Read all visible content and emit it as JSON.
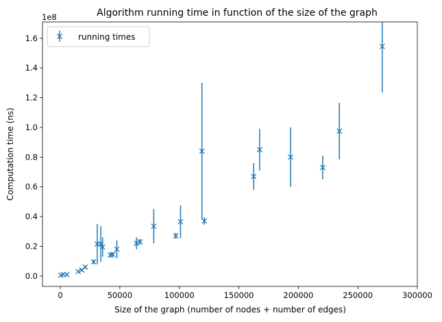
{
  "chart_data": {
    "type": "scatter",
    "title": "Algorithm running time in function of the size of the graph",
    "xlabel": "Size of the graph (number of nodes + number of edges)",
    "ylabel": "Computation time (ns)",
    "y_multiplier_label": "1e8",
    "xlim": [
      -15000,
      300000
    ],
    "ylim": [
      -0.07,
      1.71
    ],
    "x_ticks": [
      0,
      50000,
      100000,
      150000,
      200000,
      250000,
      300000
    ],
    "x_tick_labels": [
      "0",
      "50000",
      "100000",
      "150000",
      "200000",
      "250000",
      "300000"
    ],
    "y_ticks": [
      0.0,
      0.2,
      0.4,
      0.6,
      0.8,
      1.0,
      1.2,
      1.4,
      1.6
    ],
    "y_tick_labels": [
      "0.0",
      "0.2",
      "0.4",
      "0.6",
      "0.8",
      "1.0",
      "1.2",
      "1.4",
      "1.6"
    ],
    "grid": false,
    "legend_position": "top-left",
    "series": [
      {
        "name": "running times",
        "marker": "x",
        "color": "#1f77b4",
        "points": [
          {
            "x": 500,
            "y": 0.005,
            "err": 0.005
          },
          {
            "x": 2500,
            "y": 0.01,
            "err": 0.005
          },
          {
            "x": 5500,
            "y": 0.01,
            "err": 0.008
          },
          {
            "x": 15000,
            "y": 0.03,
            "err": 0.008
          },
          {
            "x": 18000,
            "y": 0.04,
            "err": 0.008
          },
          {
            "x": 21000,
            "y": 0.06,
            "err": 0.01
          },
          {
            "x": 28000,
            "y": 0.095,
            "err": 0.015
          },
          {
            "x": 31000,
            "y": 0.215,
            "err": 0.135
          },
          {
            "x": 34000,
            "y": 0.215,
            "err": 0.12
          },
          {
            "x": 35500,
            "y": 0.195,
            "err": 0.065
          },
          {
            "x": 42000,
            "y": 0.14,
            "err": 0.015
          },
          {
            "x": 44000,
            "y": 0.145,
            "err": 0.015
          },
          {
            "x": 47500,
            "y": 0.18,
            "err": 0.06
          },
          {
            "x": 64000,
            "y": 0.22,
            "err": 0.04
          },
          {
            "x": 67000,
            "y": 0.23,
            "err": 0.02
          },
          {
            "x": 78500,
            "y": 0.335,
            "err": 0.115
          },
          {
            "x": 97000,
            "y": 0.27,
            "err": 0.02
          },
          {
            "x": 101000,
            "y": 0.365,
            "err": 0.11
          },
          {
            "x": 119000,
            "y": 0.84,
            "err": 0.46
          },
          {
            "x": 121000,
            "y": 0.37,
            "err": 0.025
          },
          {
            "x": 162500,
            "y": 0.67,
            "err": 0.09
          },
          {
            "x": 167500,
            "y": 0.85,
            "err": 0.14
          },
          {
            "x": 193500,
            "y": 0.8,
            "err": 0.2
          },
          {
            "x": 220500,
            "y": 0.73,
            "err": 0.08
          },
          {
            "x": 234500,
            "y": 0.975,
            "err": 0.19
          },
          {
            "x": 270500,
            "y": 1.545,
            "err": 0.31
          }
        ]
      }
    ]
  }
}
